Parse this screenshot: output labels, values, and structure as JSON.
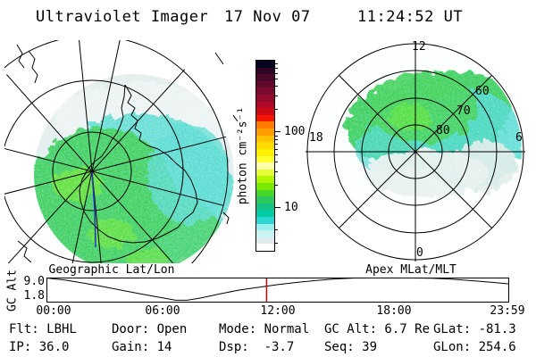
{
  "header": {
    "title": "Ultraviolet Imager",
    "date": "17 Nov 07",
    "time": "11:24:52 UT"
  },
  "colorbar": {
    "axis_label": "photon cm⁻²s⁻¹",
    "tick_100": "100",
    "tick_10": "10",
    "colors": [
      "#06051f",
      "#2d0725",
      "#49082a",
      "#61092c",
      "#7a0a2d",
      "#940a2c",
      "#b00927",
      "#cf0816",
      "#f51400",
      "#ff7c00",
      "#ff9e00",
      "#ffc100",
      "#ffdb00",
      "#ffef00",
      "#ffff30",
      "#ffffa8",
      "#e4ff38",
      "#b2f600",
      "#7ae800",
      "#46d629",
      "#2cc95e",
      "#16c184",
      "#02cba4",
      "#2ad6d2",
      "#9aeeec",
      "#c9f3f2",
      "#dfecec",
      "#ffffff"
    ]
  },
  "geo_panel": {
    "title": "Geographic Lat/Lon"
  },
  "apex_panel": {
    "title": "Apex MLat/MLT",
    "mlt_top": "12",
    "mlt_left": "18",
    "mlt_right": "6",
    "mlt_bottom": "0",
    "ring_80": "80",
    "ring_70": "70",
    "ring_60": "60"
  },
  "gc_panel": {
    "axis_label": "GC Alt",
    "tick_hi": "9.0",
    "tick_lo": "1.8",
    "x_ticks": [
      "00:00",
      "06:00",
      "12:00",
      "18:00",
      "23:59"
    ]
  },
  "status": {
    "rows": [
      [
        "Flt: LBHL",
        "Door: Open",
        "Mode: Normal",
        "GC Alt: 6.7 Re",
        "GLat: -81.3"
      ],
      [
        "IP: 36.0",
        "Gain: 14",
        "Dsp:  -3.7",
        "Seq: 39",
        "GLon: 254.6"
      ]
    ]
  },
  "chart_data": [
    {
      "type": "heatmap",
      "name": "geographic_projection",
      "title": "Geographic Lat/Lon",
      "description": "Southern-hemisphere UV auroral image over Antarctica: roughly circular speckled emission disk; green core (~20-60 photon cm-2 s-1) lower-left, cyan band (~8-15) through middle/right, pale gray-white (<3) toward the top edge; black lat/lon graticule circles and radial meridians converge at the pole; Antarctic coastline drawn in black; blue spacecraft ground-track line extends from the pole downward",
      "colorscale": "log, white ~1 to black ~1000 photon cm-2 s-1"
    },
    {
      "type": "heatmap",
      "name": "apex_polar",
      "title": "Apex MLat/MLT",
      "rings_mlat": [
        80,
        70,
        60,
        50
      ],
      "mlt_ticks": [
        12,
        18,
        6,
        0
      ],
      "description": "Auroral oval in apex magnetic coordinates: green emission arc spanning dawn-to-dusk across noon (upper half), mlat ~55-85, cyan fringe toward 06 MLT, pale speckle just below the 06-18 line near the pole"
    },
    {
      "type": "line",
      "name": "gc_alt",
      "ylabel": "GC Alt",
      "yticks": [
        9.0,
        1.8
      ],
      "x_ticks": [
        "00:00",
        "06:00",
        "12:00",
        "18:00",
        "23:59"
      ],
      "current_hour": 11.414,
      "current_value": 6.7,
      "samples": [
        [
          0,
          10.6
        ],
        [
          1,
          9.4
        ],
        [
          2,
          8.1
        ],
        [
          3,
          6.7
        ],
        [
          4,
          5.2
        ],
        [
          5,
          3.7
        ],
        [
          6,
          2.3
        ],
        [
          6.7,
          1.3
        ],
        [
          7.3,
          1.3
        ],
        [
          8,
          2.2
        ],
        [
          9,
          3.9
        ],
        [
          10,
          5.4
        ],
        [
          11,
          6.5
        ],
        [
          12,
          7.6
        ],
        [
          13,
          8.5
        ],
        [
          14,
          9.3
        ],
        [
          15,
          9.9
        ],
        [
          16,
          10.3
        ],
        [
          17,
          10.6
        ],
        [
          18,
          10.7
        ],
        [
          19,
          10.5
        ],
        [
          20,
          10.2
        ],
        [
          21,
          9.8
        ],
        [
          22,
          9.2
        ],
        [
          23,
          8.6
        ],
        [
          24,
          7.9
        ]
      ]
    }
  ]
}
